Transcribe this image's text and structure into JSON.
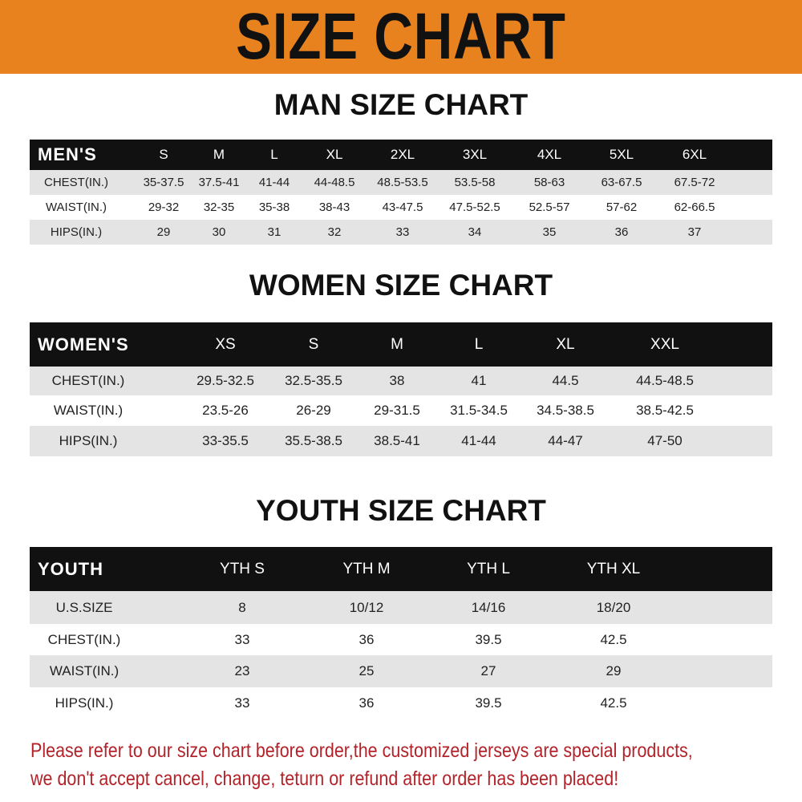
{
  "title": "SIZE CHART",
  "colors": {
    "banner": "#e8821e",
    "header_row": "#111111",
    "stripe": "#e4e4e4",
    "notice": "#b3232a"
  },
  "men": {
    "title": "MAN SIZE CHART",
    "header": [
      "MEN'S",
      "S",
      "M",
      "L",
      "XL",
      "2XL",
      "3XL",
      "4XL",
      "5XL",
      "6XL"
    ],
    "rows": [
      [
        "CHEST(IN.)",
        "35-37.5",
        "37.5-41",
        "41-44",
        "44-48.5",
        "48.5-53.5",
        "53.5-58",
        "58-63",
        "63-67.5",
        "67.5-72"
      ],
      [
        "WAIST(IN.)",
        "29-32",
        "32-35",
        "35-38",
        "38-43",
        "43-47.5",
        "47.5-52.5",
        "52.5-57",
        "57-62",
        "62-66.5"
      ],
      [
        "HIPS(IN.)",
        "29",
        "30",
        "31",
        "32",
        "33",
        "34",
        "35",
        "36",
        "37"
      ]
    ]
  },
  "women": {
    "title": "WOMEN SIZE CHART",
    "header": [
      "WOMEN'S",
      "XS",
      "S",
      "M",
      "L",
      "XL",
      "XXL"
    ],
    "rows": [
      [
        "CHEST(IN.)",
        "29.5-32.5",
        "32.5-35.5",
        "38",
        "41",
        "44.5",
        "44.5-48.5"
      ],
      [
        "WAIST(IN.)",
        "23.5-26",
        "26-29",
        "29-31.5",
        "31.5-34.5",
        "34.5-38.5",
        "38.5-42.5"
      ],
      [
        "HIPS(IN.)",
        "33-35.5",
        "35.5-38.5",
        "38.5-41",
        "41-44",
        "44-47",
        "47-50"
      ]
    ]
  },
  "youth": {
    "title": "YOUTH SIZE CHART",
    "header": [
      "YOUTH",
      "YTH S",
      "YTH M",
      "YTH L",
      "YTH XL"
    ],
    "rows": [
      [
        "U.S.SIZE",
        "8",
        "10/12",
        "14/16",
        "18/20"
      ],
      [
        "CHEST(IN.)",
        "33",
        "36",
        "39.5",
        "42.5"
      ],
      [
        "WAIST(IN.)",
        "23",
        "25",
        "27",
        "29"
      ],
      [
        "HIPS(IN.)",
        "33",
        "36",
        "39.5",
        "42.5"
      ]
    ]
  },
  "notice": {
    "line1": "Please refer to our size chart before order,the customized jerseys are special products,",
    "line2": "we don't accept cancel, change, teturn or refund after order has been placed!"
  }
}
